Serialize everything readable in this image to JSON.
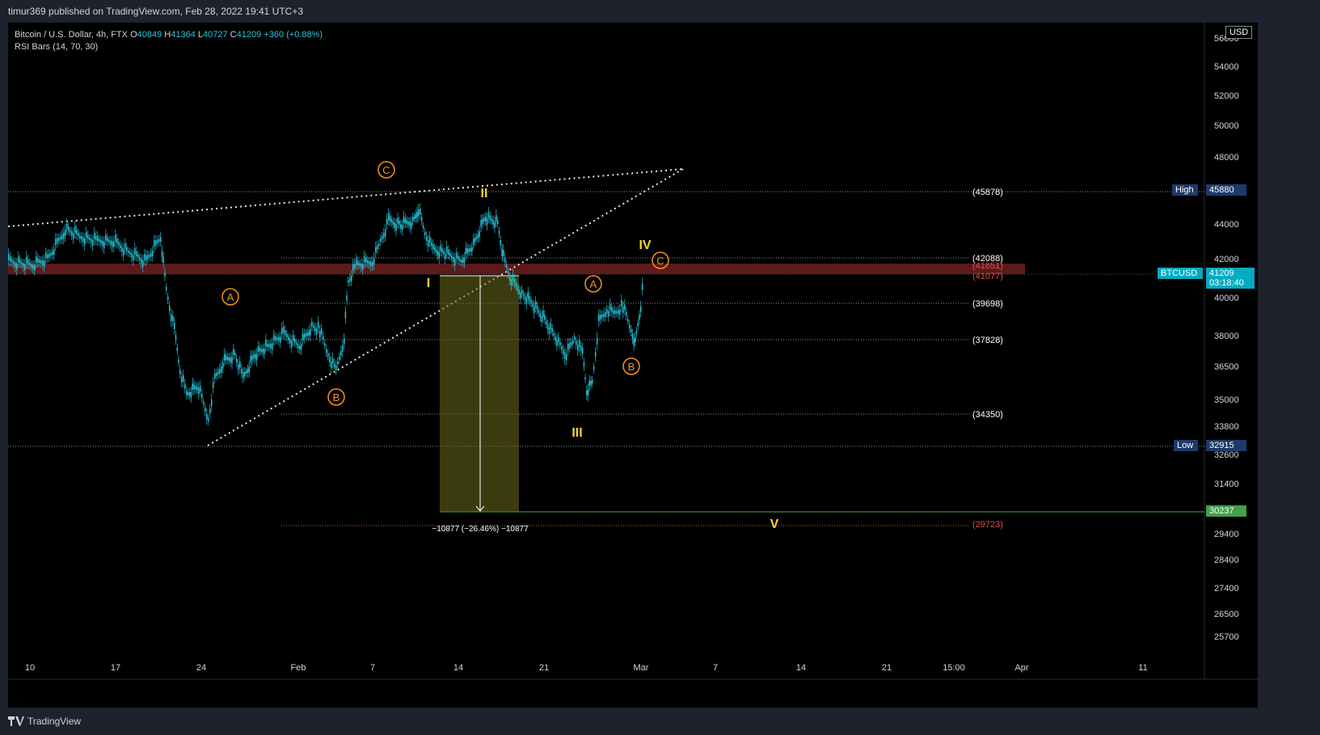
{
  "header": {
    "published": "timur369 published on TradingView.com, Feb 28, 2022 19:41 UTC+3"
  },
  "legend": {
    "symbol": "Bitcoin / U.S. Dollar, 4h, FTX",
    "open_label": "O",
    "open": "40849",
    "high_label": "H",
    "high": "41364",
    "low_label": "L",
    "low": "40727",
    "close_label": "C",
    "close": "41209",
    "change": "+360 (+0.88%)",
    "indicator": "RSI Bars (14, 70, 30)"
  },
  "currency": "USD",
  "price_axis": [
    "56000",
    "54000",
    "52000",
    "50000",
    "48000",
    "44000",
    "42000",
    "40000",
    "38000",
    "36500",
    "35000",
    "33800",
    "32600",
    "31400",
    "30200",
    "29400",
    "28400",
    "27400",
    "26500",
    "25700"
  ],
  "time_axis": [
    "10",
    "17",
    "24",
    "Feb",
    "7",
    "14",
    "21",
    "Mar",
    "7",
    "14",
    "21",
    "15:00",
    "Apr",
    "11"
  ],
  "levels": [
    "(45878)",
    "(42088)",
    "(41651)",
    "(41077)",
    "(39698)",
    "(37828)",
    "(34350)",
    "(29723)"
  ],
  "tags": {
    "high_label": "High",
    "high_value": "45880",
    "low_label": "Low",
    "low_value": "32915",
    "symbol": "BTCUSD",
    "price": "41209",
    "countdown": "03:18:40",
    "target": "30237"
  },
  "waves": {
    "c_top": "C",
    "ii": "II",
    "a_left": "A",
    "b_left": "B",
    "i": "I",
    "a_right": "A",
    "b_right": "B",
    "c_right": "C",
    "iii": "III",
    "iv": "IV",
    "v": "V"
  },
  "measure_label": "−10877 (−26.46%) −10877",
  "footer": {
    "brand": "TradingView"
  },
  "colors": {
    "bull": "#26c6da",
    "bear": "#26c6da",
    "accent_orange": "#f7931a",
    "wave_yellow": "#f5d43b",
    "resistance_band": "#5c1a1a",
    "target_green": "#4caf50"
  }
}
